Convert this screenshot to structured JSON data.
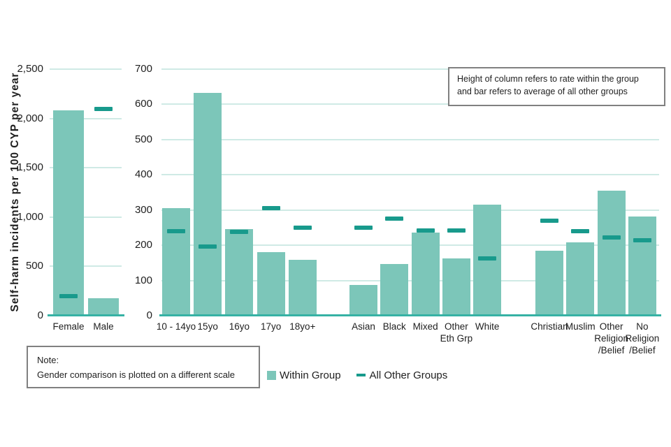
{
  "y_axis_title": "Self-harm incidents per 100 CYP per year",
  "annotation": {
    "line1": "Height of column refers to rate within the group",
    "line2": "and bar refers to average of all other groups"
  },
  "note": {
    "label": "Note:",
    "text": "Gender comparison is plotted on a different scale"
  },
  "legend": {
    "within": "Within Group",
    "others": "All Other Groups"
  },
  "colors": {
    "bar_fill": "#7CC6B9",
    "marker": "#189A8C",
    "gridline": "#CFEAE5",
    "axis_line": "#36B2A4",
    "text": "#1F1F1F",
    "box_border": "#808080"
  },
  "chart_data": [
    {
      "type": "bar",
      "name": "gender",
      "ylabel": "Self-harm incidents per 100 CYP per year",
      "ylim": [
        0,
        2500
      ],
      "yticks": [
        0,
        500,
        1000,
        1500,
        2000,
        2500
      ],
      "ytick_labels": [
        "0",
        "500",
        "1,000",
        "1,500",
        "2,000",
        "2,500"
      ],
      "grid": true,
      "categories": [
        "Female",
        "Male"
      ],
      "series": [
        {
          "name": "Within Group",
          "values": [
            2080,
            180
          ]
        },
        {
          "name": "All Other Groups",
          "values": [
            198,
            2095
          ]
        }
      ]
    },
    {
      "type": "bar",
      "name": "age-ethnicity-religion",
      "ylim": [
        0,
        700
      ],
      "yticks": [
        0,
        100,
        200,
        300,
        400,
        500,
        600,
        700
      ],
      "ytick_labels": [
        "0",
        "100",
        "200",
        "300",
        "400",
        "500",
        "600",
        "700"
      ],
      "grid": true,
      "legend_position": "bottom",
      "groups": [
        {
          "name": "age",
          "categories": [
            [
              "10 - 14yo"
            ],
            [
              "15yo"
            ],
            [
              "16yo"
            ],
            [
              "17yo"
            ],
            [
              "18yo+"
            ]
          ],
          "series": [
            {
              "name": "Within Group",
              "values": [
                305,
                632,
                245,
                180,
                158
              ]
            },
            {
              "name": "All Other Groups",
              "values": [
                240,
                196,
                238,
                305,
                250
              ]
            }
          ]
        },
        {
          "name": "ethnicity",
          "categories": [
            [
              "Asian"
            ],
            [
              "Black"
            ],
            [
              "Mixed"
            ],
            [
              "Other",
              "Eth Grp"
            ],
            [
              "White"
            ]
          ],
          "series": [
            {
              "name": "Within Group",
              "values": [
                88,
                146,
                235,
                162,
                315
              ]
            },
            {
              "name": "All Other Groups",
              "values": [
                250,
                276,
                241,
                242,
                162
              ]
            }
          ]
        },
        {
          "name": "religion",
          "categories": [
            [
              "Christian"
            ],
            [
              "Muslim"
            ],
            [
              "Other",
              "Religion",
              "/Belief"
            ],
            [
              "No",
              "Religion",
              "/Belief"
            ]
          ],
          "series": [
            {
              "name": "Within Group",
              "values": [
                184,
                208,
                355,
                282
              ]
            },
            {
              "name": "All Other Groups",
              "values": [
                270,
                240,
                222,
                214
              ]
            }
          ]
        }
      ]
    }
  ]
}
